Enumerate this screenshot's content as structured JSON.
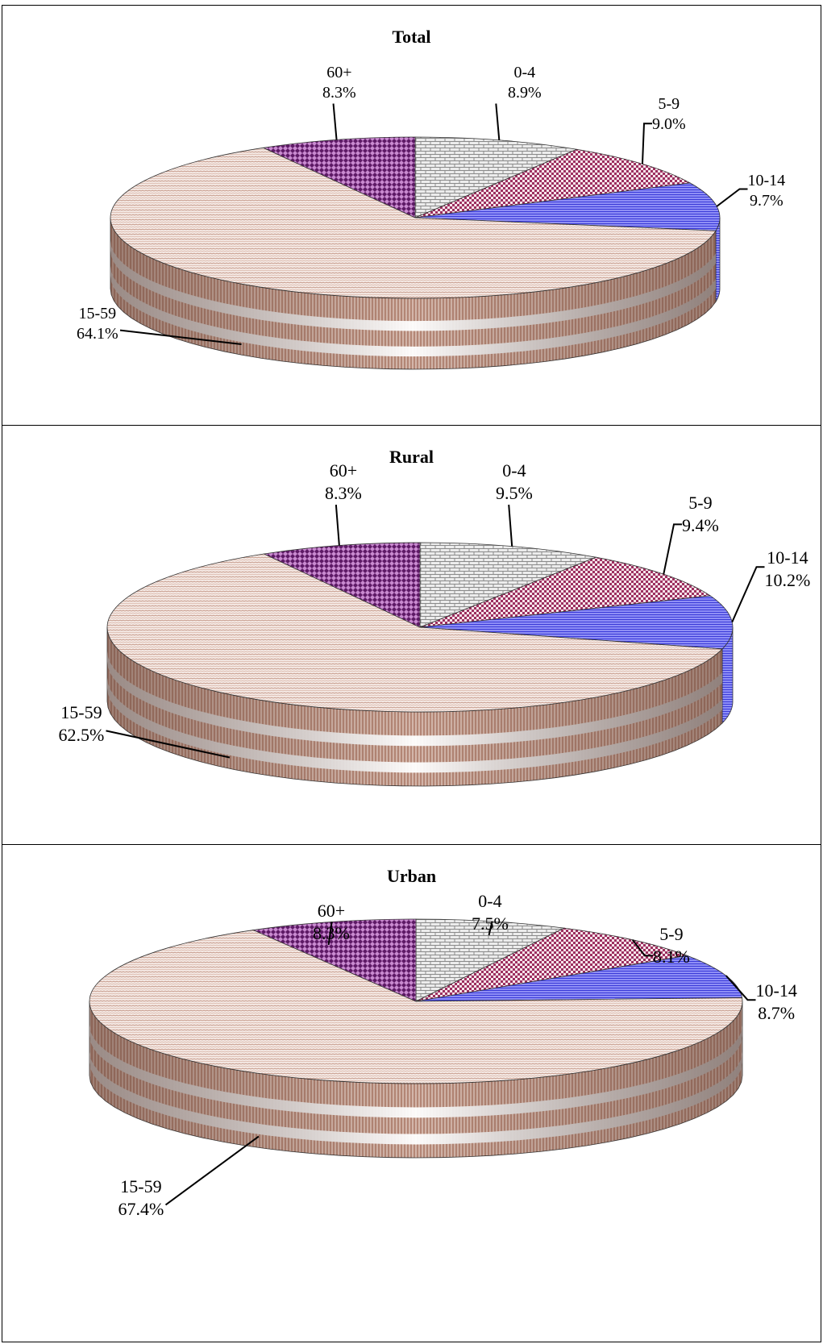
{
  "chart_data": [
    {
      "type": "pie",
      "title": "Total",
      "slices": [
        {
          "label": "0-4",
          "value": 8.9,
          "text": "8.9%"
        },
        {
          "label": "5-9",
          "value": 9.0,
          "text": "9.0%"
        },
        {
          "label": "10-14",
          "value": 9.7,
          "text": "9.7%"
        },
        {
          "label": "15-59",
          "value": 64.1,
          "text": "64.1%"
        },
        {
          "label": "60+",
          "value": 8.3,
          "text": "8.3%"
        }
      ]
    },
    {
      "type": "pie",
      "title": "Rural",
      "slices": [
        {
          "label": "0-4",
          "value": 9.5,
          "text": "9.5%"
        },
        {
          "label": "5-9",
          "value": 9.4,
          "text": "9.4%"
        },
        {
          "label": "10-14",
          "value": 10.2,
          "text": "10.2%"
        },
        {
          "label": "15-59",
          "value": 62.5,
          "text": "62.5%"
        },
        {
          "label": "60+",
          "value": 8.3,
          "text": "8.3%"
        }
      ]
    },
    {
      "type": "pie",
      "title": "Urban",
      "slices": [
        {
          "label": "0-4",
          "value": 7.5,
          "text": "7.5%"
        },
        {
          "label": "5-9",
          "value": 8.1,
          "text": "8.1%"
        },
        {
          "label": "10-14",
          "value": 8.7,
          "text": "8.7%"
        },
        {
          "label": "15-59",
          "value": 67.4,
          "text": "67.4%"
        },
        {
          "label": "60+",
          "value": 8.3,
          "text": "8.3%"
        }
      ]
    }
  ],
  "colors": {
    "0-4": "#d9d9d9",
    "5-9": "#a23a6a",
    "10-14": "#6666ee",
    "15-59": "#c49a8a",
    "60+": "#7a2a80"
  }
}
